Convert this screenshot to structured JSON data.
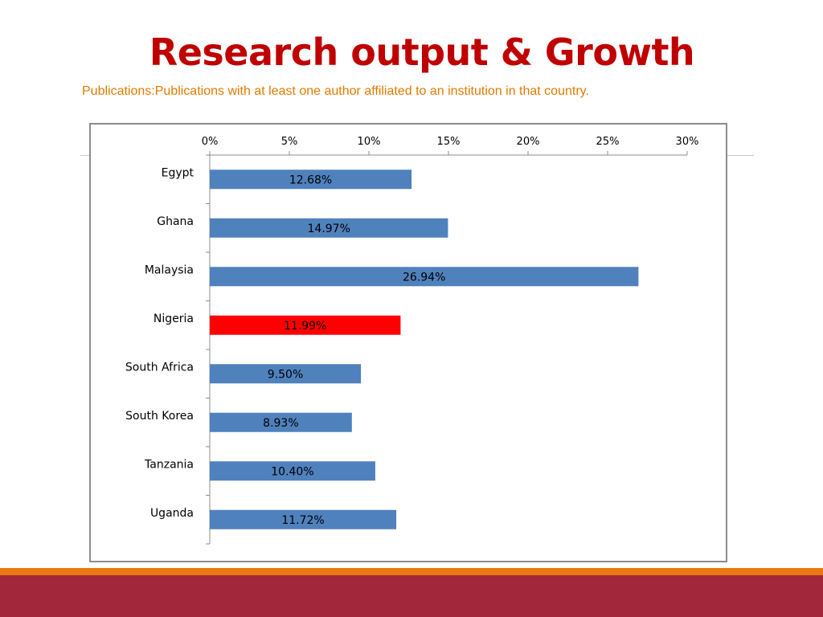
{
  "slide": {
    "title": "Research output & Growth",
    "subtitle": "Publications:Publications with at least one author affiliated to an institution in that country."
  },
  "colors": {
    "title": "#c00000",
    "subtitle": "#e07b00",
    "bar_default": "#4f81bd",
    "bar_highlight": "#ff0000",
    "footer_orange": "#e8790f",
    "footer_red": "#a2273a"
  },
  "chart_data": {
    "type": "bar",
    "orientation": "horizontal",
    "categories": [
      "Egypt",
      "Ghana",
      "Malaysia",
      "Nigeria",
      "South Africa",
      "South Korea",
      "Tanzania",
      "Uganda"
    ],
    "values": [
      12.68,
      14.97,
      26.94,
      11.99,
      9.5,
      8.93,
      10.4,
      11.72
    ],
    "data_labels": [
      "12.68%",
      "14.97%",
      "26.94%",
      "11.99%",
      "9.50%",
      "8.93%",
      "10.40%",
      "11.72%"
    ],
    "highlight": "Nigeria",
    "xlim": [
      0,
      30
    ],
    "x_ticks": [
      0,
      5,
      10,
      15,
      20,
      25,
      30
    ],
    "x_tick_labels": [
      "0%",
      "5%",
      "10%",
      "15%",
      "20%",
      "25%",
      "30%"
    ],
    "x_axis_position": "top",
    "grid": false,
    "legend": "none"
  }
}
